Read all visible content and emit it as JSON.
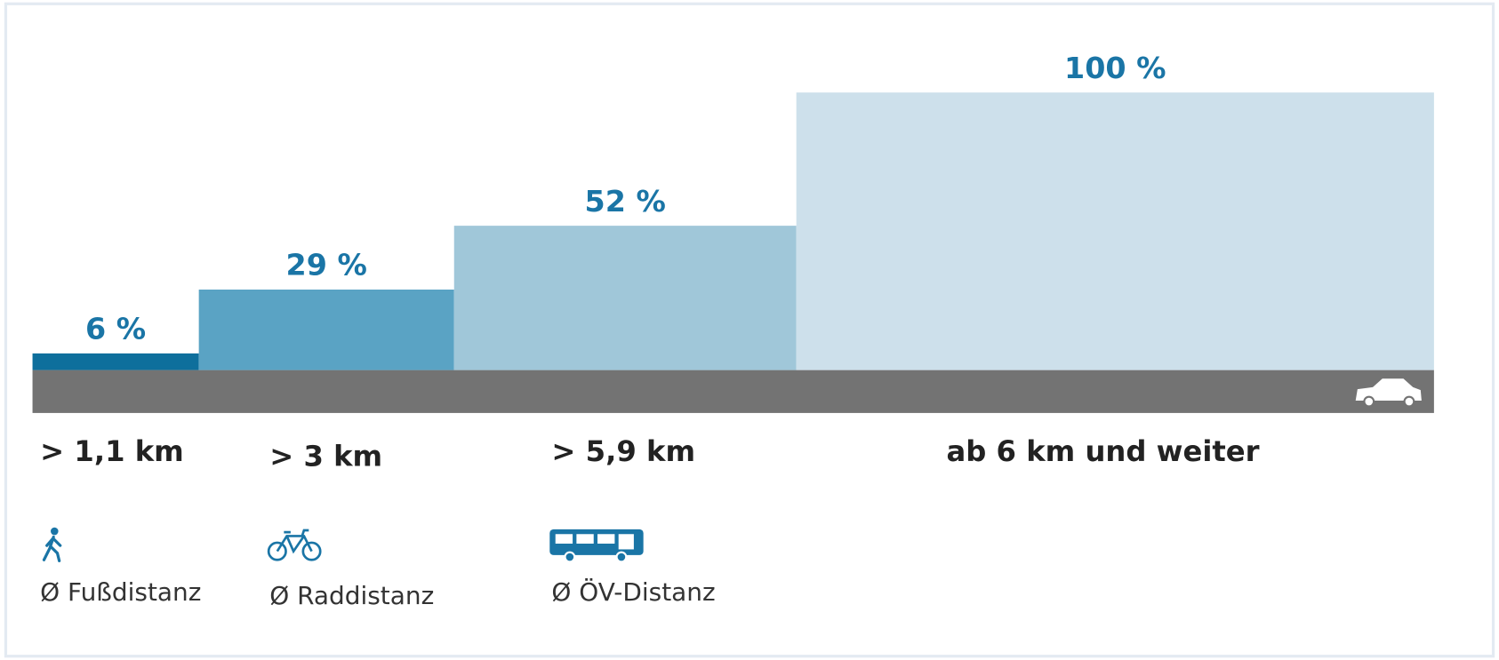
{
  "chart_data": {
    "type": "bar",
    "categories": [
      "> 1,1 km",
      "> 3 km",
      "> 5,9 km",
      "ab 6 km und weiter"
    ],
    "sublabels": [
      "Ø Fußdistanz",
      "Ø Raddistanz",
      "Ø ÖV-Distanz"
    ],
    "values": [
      6,
      29,
      52,
      100
    ],
    "value_labels": [
      "6 %",
      "29 %",
      "52 %",
      "100 %"
    ],
    "colors": [
      "#0e6f9c",
      "#5aa3c4",
      "#a0c7d9",
      "#cde0eb"
    ],
    "ylim": [
      0,
      100
    ]
  }
}
